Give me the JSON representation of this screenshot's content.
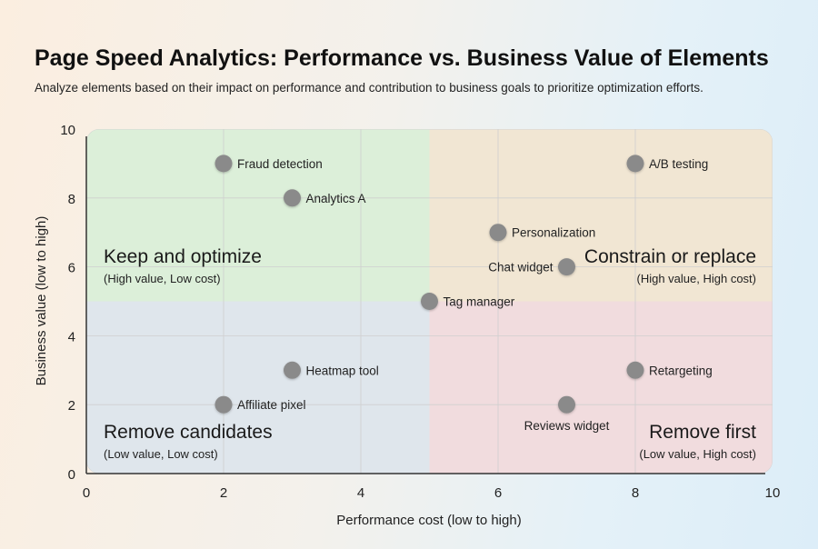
{
  "chart_data": {
    "type": "scatter",
    "title": "Page Speed Analytics: Performance vs. Business Value of Elements",
    "subtitle": "Analyze elements based on their impact on performance and contribution to business goals to prioritize optimization efforts.",
    "xlabel": "Performance cost (low to high)",
    "ylabel": "Business value (low to high)",
    "xlim": [
      0,
      10
    ],
    "ylim": [
      0,
      10
    ],
    "xticks": [
      "0",
      "2",
      "4",
      "6",
      "8",
      "10"
    ],
    "yticks": [
      "0",
      "2",
      "4",
      "6",
      "8",
      "10"
    ],
    "grid": true,
    "point_color": "#8a8a8a",
    "points": [
      {
        "label": "Fraud detection",
        "x": 2,
        "y": 9
      },
      {
        "label": "Analytics A",
        "x": 3,
        "y": 8
      },
      {
        "label": "A/B testing",
        "x": 8,
        "y": 9
      },
      {
        "label": "Personalization",
        "x": 6,
        "y": 7
      },
      {
        "label": "Chat widget",
        "x": 7,
        "y": 6
      },
      {
        "label": "Tag manager",
        "x": 5,
        "y": 5
      },
      {
        "label": "Heatmap tool",
        "x": 3,
        "y": 3
      },
      {
        "label": "Affiliate pixel",
        "x": 2,
        "y": 2
      },
      {
        "label": "Retargeting",
        "x": 8,
        "y": 3
      },
      {
        "label": "Reviews widget",
        "x": 7,
        "y": 2,
        "label_position": "below"
      }
    ],
    "quadrants": [
      {
        "id": "top-left",
        "title": "Keep and optimize",
        "subtitle": "(High value, Low cost)",
        "color": "#dcefd9"
      },
      {
        "id": "top-right",
        "title": "Constrain or replace",
        "subtitle": "(High value, High cost)",
        "color": "#f1e6d3"
      },
      {
        "id": "bottom-left",
        "title": "Remove candidates",
        "subtitle": "(Low value, Low cost)",
        "color": "#dfe6ec"
      },
      {
        "id": "bottom-right",
        "title": "Remove first",
        "subtitle": "(Low value, High cost)",
        "color": "#f1dcde"
      }
    ]
  }
}
